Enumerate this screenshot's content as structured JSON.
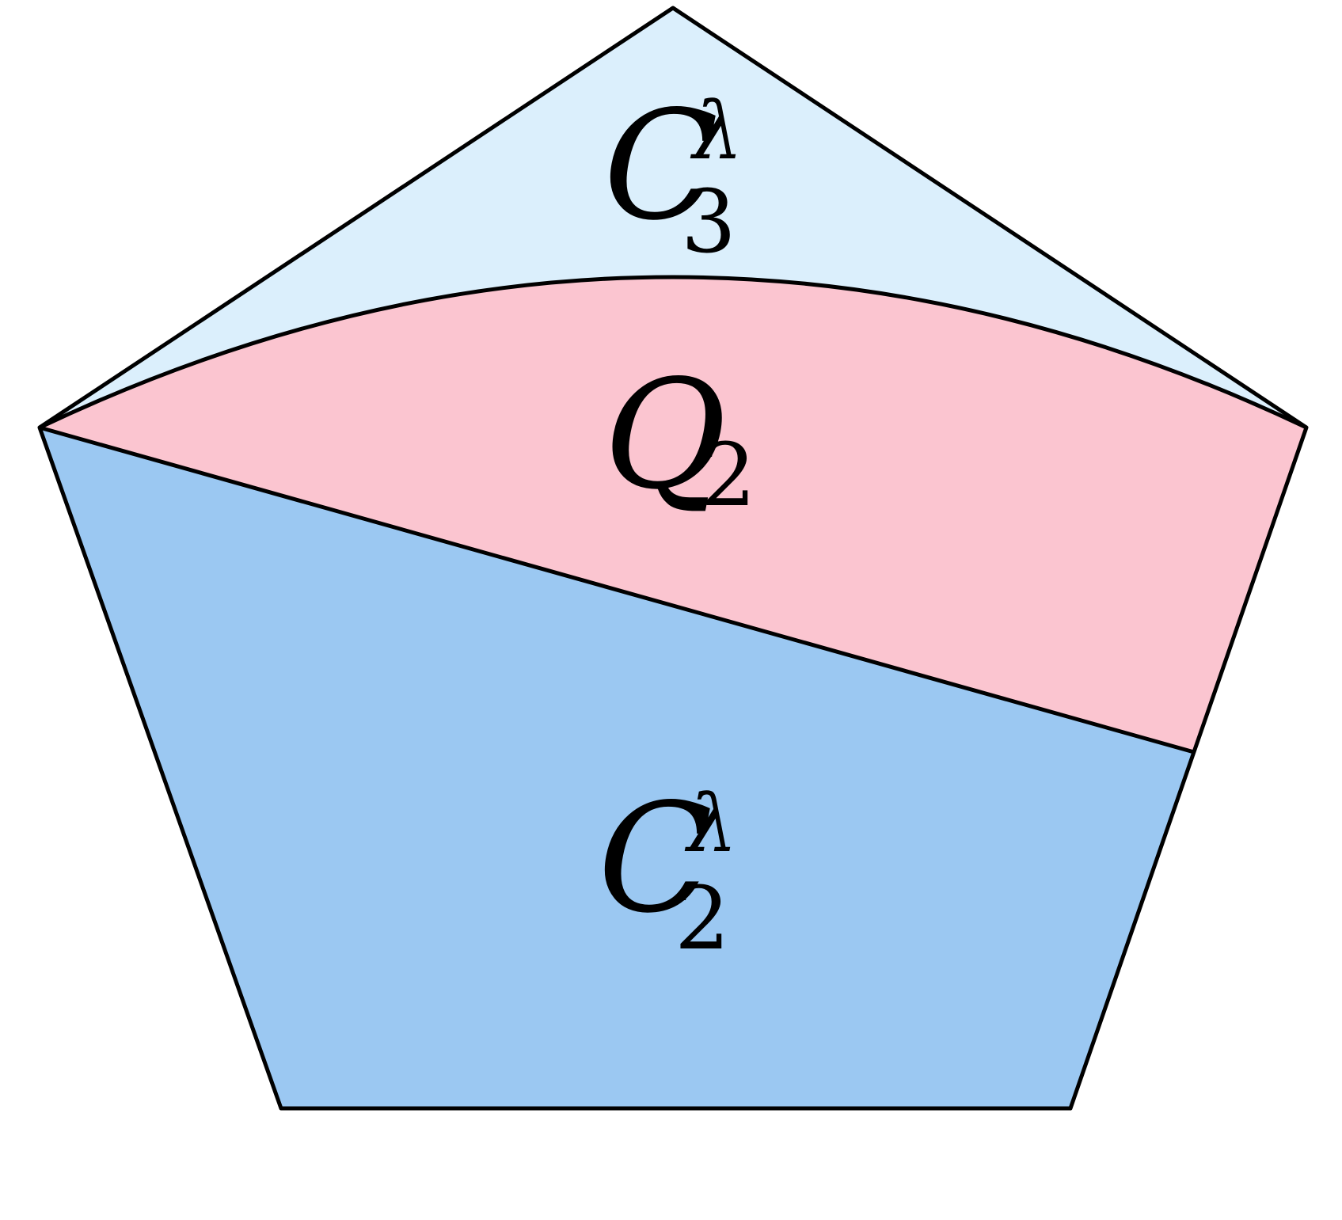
{
  "colors": {
    "region_c3": "#dbeffc",
    "region_q2": "#fbc5d0",
    "region_c2": "#9bc8f2",
    "stroke": "#000000",
    "background": "#ffffff"
  },
  "labels": {
    "c3": {
      "base": "C",
      "superscript": "λ",
      "subscript": "3"
    },
    "q2": {
      "base": "Q",
      "subscript": "2"
    },
    "c2": {
      "base": "C",
      "superscript": "λ",
      "subscript": "2"
    }
  }
}
